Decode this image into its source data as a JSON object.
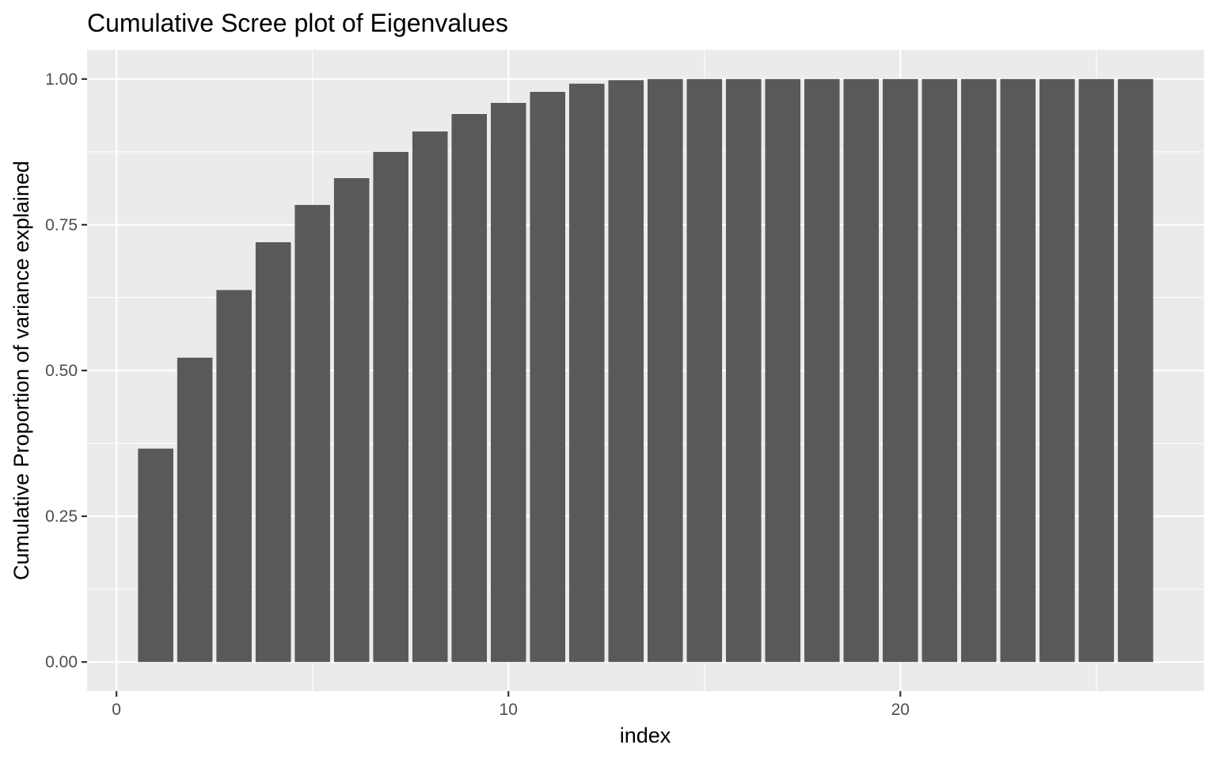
{
  "chart_data": {
    "type": "bar",
    "title": "Cumulative Scree plot of Eigenvalues",
    "xlabel": "index",
    "ylabel": "Cumulative Proportion of variance explained",
    "x": [
      1,
      2,
      3,
      4,
      5,
      6,
      7,
      8,
      9,
      10,
      11,
      12,
      13,
      14,
      15,
      16,
      17,
      18,
      19,
      20,
      21,
      22,
      23,
      24,
      25,
      26
    ],
    "values": [
      0.366,
      0.522,
      0.638,
      0.72,
      0.784,
      0.83,
      0.875,
      0.91,
      0.94,
      0.959,
      0.978,
      0.992,
      0.998,
      1.0,
      1.0,
      1.0,
      1.0,
      1.0,
      1.0,
      1.0,
      1.0,
      1.0,
      1.0,
      1.0,
      1.0,
      1.0
    ],
    "xlim": [
      -0.75,
      27.75
    ],
    "ylim": [
      -0.05,
      1.05
    ],
    "xticks": [
      0,
      10,
      20
    ],
    "xtick_labels": [
      "0",
      "10",
      "20"
    ],
    "xminor": [
      5,
      15,
      25
    ],
    "yticks": [
      0.0,
      0.25,
      0.5,
      0.75,
      1.0
    ],
    "ytick_labels": [
      "0.00",
      "0.25",
      "0.50",
      "0.75",
      "1.00"
    ],
    "yminor": [
      0.125,
      0.375,
      0.625,
      0.875
    ],
    "grid": true,
    "legend": "none",
    "colors": {
      "panel": "#ebebeb",
      "gridline": "#ffffff",
      "bar": "#595959",
      "tick_text": "#4d4d4d",
      "text": "#000000"
    }
  }
}
